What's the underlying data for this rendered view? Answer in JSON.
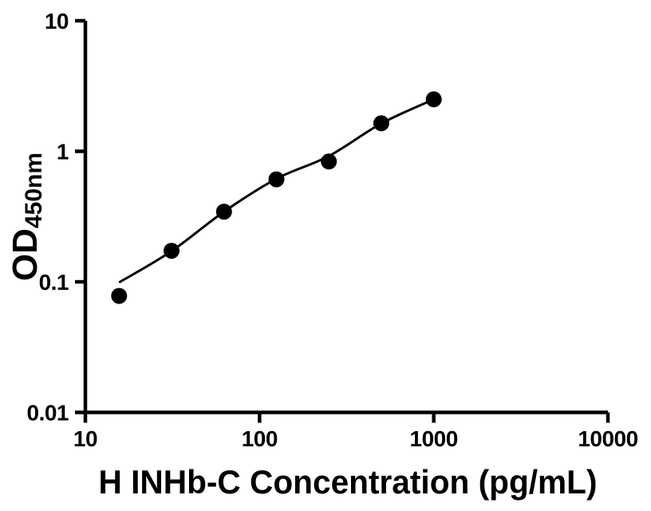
{
  "style": {
    "background": "#ffffff",
    "foreground": "#000000"
  },
  "chart_data": {
    "type": "scatter",
    "title": "",
    "xlabel": "H INHb-C Concentration (pg/mL)",
    "ylabel": {
      "main": "OD",
      "subscript": "450nm"
    },
    "x_scale": "log",
    "y_scale": "log",
    "xlim": [
      10,
      10000
    ],
    "ylim": [
      0.01,
      10
    ],
    "grid": false,
    "legend": "none",
    "x_ticks": [
      {
        "value": 10,
        "label": "10"
      },
      {
        "value": 100,
        "label": "100"
      },
      {
        "value": 1000,
        "label": "1000"
      },
      {
        "value": 10000,
        "label": "10000"
      }
    ],
    "y_ticks": [
      {
        "value": 0.01,
        "label": "0.01"
      },
      {
        "value": 0.1,
        "label": "0.1"
      },
      {
        "value": 1,
        "label": "1"
      },
      {
        "value": 10,
        "label": "10"
      }
    ],
    "series": [
      {
        "name": "standards",
        "marker": "circle",
        "marker_color": "#000000",
        "points": [
          {
            "x": 15.625,
            "y": 0.078
          },
          {
            "x": 31.25,
            "y": 0.173
          },
          {
            "x": 62.5,
            "y": 0.345
          },
          {
            "x": 125,
            "y": 0.61
          },
          {
            "x": 250,
            "y": 0.835
          },
          {
            "x": 500,
            "y": 1.64
          },
          {
            "x": 1000,
            "y": 2.5
          }
        ]
      }
    ],
    "fit_curve": {
      "name": "fitted-standard-curve",
      "color": "#000000",
      "points": [
        {
          "x": 15.625,
          "y": 0.099
        },
        {
          "x": 31.25,
          "y": 0.172
        },
        {
          "x": 62.5,
          "y": 0.345
        },
        {
          "x": 125,
          "y": 0.616
        },
        {
          "x": 250,
          "y": 0.92
        },
        {
          "x": 500,
          "y": 1.633
        },
        {
          "x": 1000,
          "y": 2.5
        }
      ]
    }
  }
}
